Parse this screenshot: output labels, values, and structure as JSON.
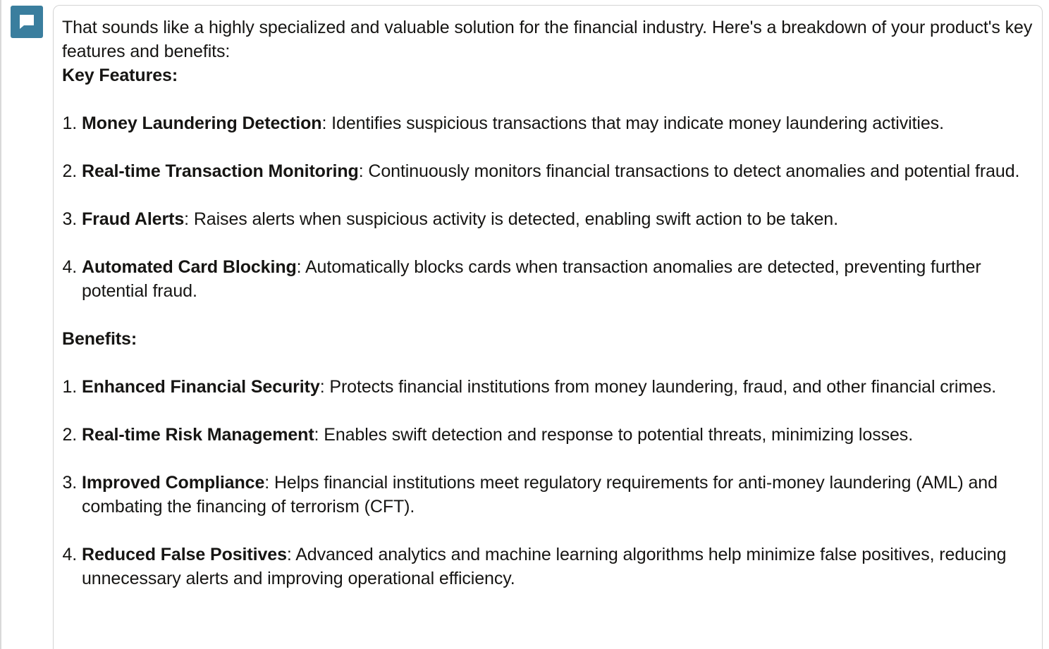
{
  "avatar": {
    "icon": "chat-bubble-icon",
    "color": "#3a7e9e"
  },
  "message": {
    "intro": "That sounds like a highly specialized and valuable solution for the financial industry. Here's a breakdown of your product's key features and benefits:",
    "key_features_heading": "Key Features:",
    "key_features": [
      {
        "term": "Money Laundering Detection",
        "desc": ": Identifies suspicious transactions that may indicate money laundering activities."
      },
      {
        "term": "Real-time Transaction Monitoring",
        "desc": ": Continuously monitors financial transactions to detect anomalies and potential fraud."
      },
      {
        "term": "Fraud Alerts",
        "desc": ": Raises alerts when suspicious activity is detected, enabling swift action to be taken."
      },
      {
        "term": "Automated Card Blocking",
        "desc": ": Automatically blocks cards when transaction anomalies are detected, preventing further potential fraud."
      }
    ],
    "benefits_heading": "Benefits:",
    "benefits": [
      {
        "term": "Enhanced Financial Security",
        "desc": ": Protects financial institutions from money laundering, fraud, and other financial crimes."
      },
      {
        "term": "Real-time Risk Management",
        "desc": ": Enables swift detection and response to potential threats, minimizing losses."
      },
      {
        "term": "Improved Compliance",
        "desc": ": Helps financial institutions meet regulatory requirements for anti-money laundering (AML) and combating the financing of terrorism (CFT)."
      },
      {
        "term": "Reduced False Positives",
        "desc": ": Advanced analytics and machine learning algorithms help minimize false positives, reducing unnecessary alerts and improving operational efficiency."
      }
    ]
  }
}
